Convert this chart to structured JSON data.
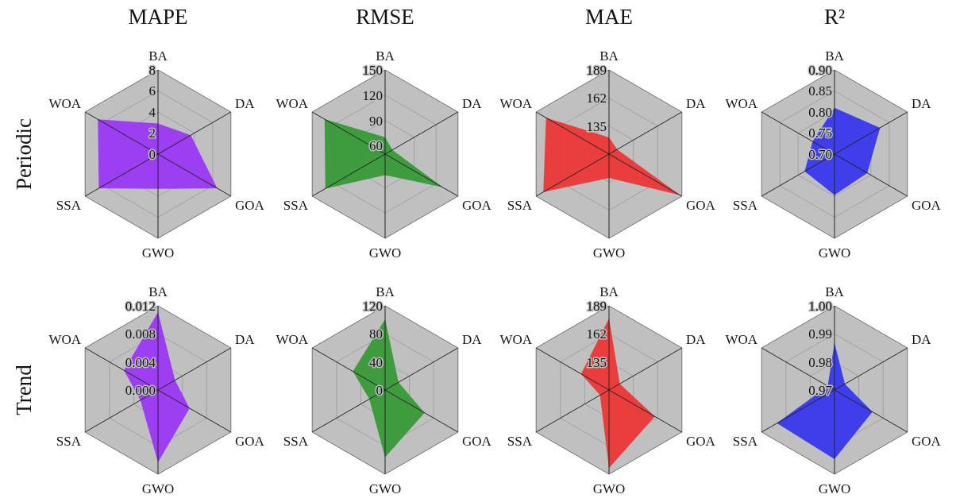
{
  "chart_data": [
    {
      "type": "radar",
      "title": "MAPE",
      "ylabel": "Periodic",
      "categories": [
        "BA",
        "DA",
        "GOA",
        "GWO",
        "SSA",
        "WOA"
      ],
      "ylim": [
        0,
        8
      ],
      "yticks": [
        0,
        2,
        4,
        6,
        8
      ],
      "grid": true,
      "series": [
        {
          "color": "#9933f5",
          "values": [
            2.9,
            3.6,
            6.5,
            3.3,
            6.5,
            6.6
          ]
        }
      ]
    },
    {
      "type": "radar",
      "title": "RMSE",
      "categories": [
        "BA",
        "DA",
        "GOA",
        "GWO",
        "SSA",
        "WOA"
      ],
      "ylim": [
        50,
        150
      ],
      "yticks": [
        60,
        90,
        120,
        150
      ],
      "grid": true,
      "series": [
        {
          "color": "#339933",
          "values": [
            70,
            60,
            129,
            75,
            132,
            133
          ]
        }
      ]
    },
    {
      "type": "radar",
      "title": "MAE",
      "categories": [
        "BA",
        "DA",
        "GOA",
        "GWO",
        "SSA",
        "WOA"
      ],
      "ylim": [
        108,
        189
      ],
      "yticks": [
        135,
        162,
        189
      ],
      "grid": true,
      "series": [
        {
          "color": "#ee3333",
          "values": [
            124,
            117,
            187,
            131,
            181,
            178
          ]
        }
      ]
    },
    {
      "type": "radar",
      "title": "R²",
      "categories": [
        "BA",
        "DA",
        "GOA",
        "GWO",
        "SSA",
        "WOA"
      ],
      "ylim": [
        0.7,
        0.9
      ],
      "yticks": [
        {
          "value": 0.7,
          "label": "0.70"
        },
        0.75,
        {
          "value": 0.8,
          "label": "0.80"
        },
        0.85,
        {
          "value": 0.9,
          "label": "0.90"
        }
      ],
      "grid": true,
      "series": [
        {
          "color": "#3333ee",
          "values": [
            0.81,
            0.825,
            0.79,
            0.797,
            0.782,
            0.76
          ]
        }
      ]
    },
    {
      "type": "radar",
      "ylabel": "Trend",
      "categories": [
        "BA",
        "DA",
        "GOA",
        "GWO",
        "SSA",
        "WOA"
      ],
      "ylim": [
        0,
        0.012
      ],
      "yticks": [
        {
          "value": 0,
          "label": "0.000"
        },
        0.004,
        0.008,
        0.012
      ],
      "grid": true,
      "series": [
        {
          "color": "#9933f5",
          "values": [
            0.0111,
            0.0028,
            0.0052,
            0.0103,
            0.0029,
            0.0056
          ]
        }
      ]
    },
    {
      "type": "radar",
      "categories": [
        "BA",
        "DA",
        "GOA",
        "GWO",
        "SSA",
        "WOA"
      ],
      "ylim": [
        0,
        120
      ],
      "yticks": [
        0,
        40,
        80,
        120
      ],
      "grid": true,
      "series": [
        {
          "color": "#339933",
          "values": [
            101,
            22,
            65,
            96,
            26,
            53
          ]
        }
      ]
    },
    {
      "type": "radar",
      "categories": [
        "BA",
        "DA",
        "GOA",
        "GWO",
        "SSA",
        "WOA"
      ],
      "ylim": [
        108,
        189
      ],
      "yticks": [
        135,
        162,
        189
      ],
      "grid": true,
      "series": [
        {
          "color": "#ee3333",
          "values": [
            177,
            120,
            159,
            183,
            118,
            139
          ]
        }
      ]
    },
    {
      "type": "radar",
      "categories": [
        "BA",
        "DA",
        "GOA",
        "GWO",
        "SSA",
        "WOA"
      ],
      "ylim": [
        0.97,
        1.0
      ],
      "yticks": [
        0.97,
        0.98,
        0.99,
        {
          "value": 1.0,
          "label": "1.00"
        }
      ],
      "grid": true,
      "series": [
        {
          "color": "#3333ee",
          "values": [
            0.9868,
            0.9743,
            0.9856,
            0.9946,
            0.9937,
            0.9728
          ]
        }
      ]
    }
  ]
}
